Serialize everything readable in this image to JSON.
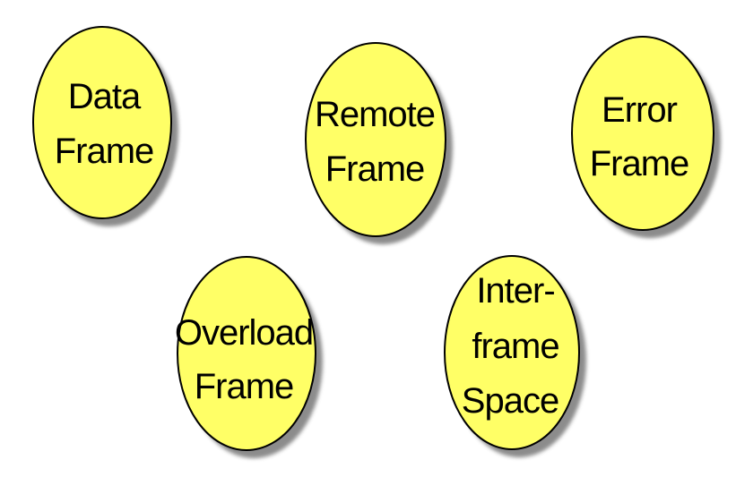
{
  "diagram": {
    "node_fill": "#ffff66",
    "node_stroke": "#000000",
    "shadow_color": "#666666",
    "nodes": [
      {
        "id": "data-frame",
        "lines": [
          "Data",
          "Frame"
        ]
      },
      {
        "id": "remote-frame",
        "lines": [
          "Remote",
          "Frame"
        ]
      },
      {
        "id": "error-frame",
        "lines": [
          "Error",
          "Frame"
        ]
      },
      {
        "id": "overload-frame",
        "lines": [
          "Overload",
          "Frame"
        ]
      },
      {
        "id": "interframe-space",
        "lines": [
          "Inter-",
          "frame",
          "Space"
        ]
      }
    ]
  }
}
